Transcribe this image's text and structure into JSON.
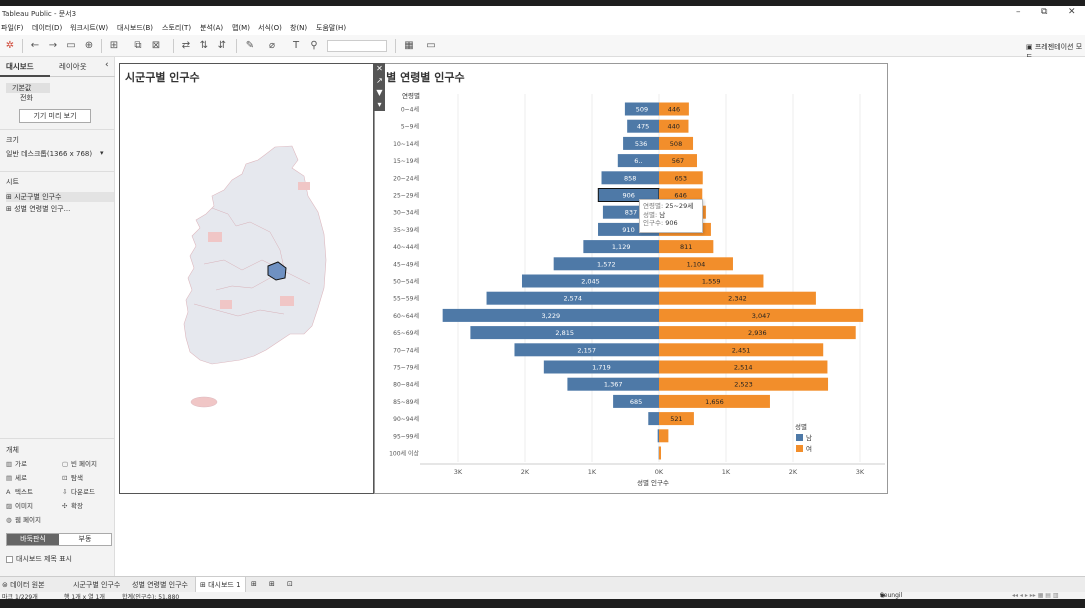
{
  "window": {
    "title": "Tableau Public - 문서3"
  },
  "menu": [
    "파일(F)",
    "데이터(D)",
    "워크시트(W)",
    "대시보드(B)",
    "스토리(T)",
    "분석(A)",
    "맵(M)",
    "서식(O)",
    "창(N)",
    "도움말(H)"
  ],
  "toolbar": {
    "presentation_mode": "프레젠테이션 모드"
  },
  "left_pane": {
    "tabs": [
      "대시보드",
      "레이아웃"
    ],
    "device_default": "기본값",
    "device_all": "전화",
    "device_preview_button": "기기 미리 보기",
    "size_header": "크기",
    "size_value": "일반 데스크톱(1366 x 768)",
    "sheets_header": "시트",
    "sheets": [
      "시군구별 인구수",
      "성별 연령별 인구..."
    ],
    "objects_header": "개체",
    "objects": [
      {
        "icon": "horizontal-icon",
        "label": "가로"
      },
      {
        "icon": "blank-icon",
        "label": "빈 페이지"
      },
      {
        "icon": "vertical-icon",
        "label": "세로"
      },
      {
        "icon": "navigation-icon",
        "label": "탐색"
      },
      {
        "icon": "text-icon",
        "label": "텍스트"
      },
      {
        "icon": "download-icon",
        "label": "다운로드"
      },
      {
        "icon": "image-icon",
        "label": "이미지"
      },
      {
        "icon": "extension-icon",
        "label": "확장"
      },
      {
        "icon": "web-page-icon",
        "label": "웹 페이지"
      }
    ],
    "layout_tiled": "바둑판식",
    "layout_floating": "부동",
    "show_title": "대시보드 제목 표시"
  },
  "map_panel": {
    "title": "시군구별 인구수"
  },
  "chart_panel": {
    "title": "성별 연령별 인구수"
  },
  "tooltip": {
    "rows": [
      {
        "key": "연령별:",
        "value": "25~29세"
      },
      {
        "key": "성별:",
        "value": "남"
      },
      {
        "key": "인구수:",
        "value": "906"
      }
    ]
  },
  "chart_data": {
    "type": "bar",
    "orientation": "horizontal",
    "layout": "population-pyramid",
    "title": "성별 연령별 인구수",
    "y_header": "연령별",
    "xlabel": "성별 인구수",
    "categories": [
      "0~4세",
      "5~9세",
      "10~14세",
      "15~19세",
      "20~24세",
      "25~29세",
      "30~34세",
      "35~39세",
      "40~44세",
      "45~49세",
      "50~54세",
      "55~59세",
      "60~64세",
      "65~69세",
      "70~74세",
      "75~79세",
      "80~84세",
      "85~89세",
      "90~94세",
      "95~99세",
      "100세 이상"
    ],
    "series": [
      {
        "name": "남",
        "color": "#4e79a7",
        "direction": "left",
        "values": [
          509,
          475,
          536,
          615,
          858,
          906,
          837,
          910,
          1129,
          1572,
          2045,
          2574,
          3229,
          2815,
          2157,
          1719,
          1367,
          685,
          160,
          20,
          5
        ],
        "labels": [
          "509",
          "475",
          "536",
          "6..",
          "858",
          "906",
          "837",
          "910",
          "1,129",
          "1,572",
          "2,045",
          "2,574",
          "3,229",
          "2,815",
          "2,157",
          "1,719",
          "1,367",
          "685",
          "",
          "",
          ""
        ]
      },
      {
        "name": "여",
        "color": "#f28e2b",
        "direction": "right",
        "values": [
          446,
          440,
          508,
          567,
          653,
          646,
          700,
          775,
          811,
          1104,
          1559,
          2342,
          3047,
          2936,
          2451,
          2514,
          2523,
          1656,
          521,
          140,
          30
        ],
        "labels": [
          "446",
          "440",
          "508",
          "567",
          "653",
          "646",
          "",
          "",
          "811",
          "1,104",
          "1,559",
          "2,342",
          "3,047",
          "2,936",
          "2,451",
          "2,514",
          "2,523",
          "1,656",
          "521",
          "",
          ""
        ]
      }
    ],
    "xticks": [
      "3K",
      "2K",
      "1K",
      "0K",
      "1K",
      "2K",
      "3K"
    ],
    "xlim": [
      -3200,
      3200
    ],
    "legend": {
      "title": "성별",
      "items": [
        "남",
        "여"
      ],
      "placement": "bottom-right"
    },
    "highlighted_category": "25~29세"
  },
  "sheet_tabs": [
    "데이터 원본",
    "시군구별 인구수",
    "성별 연령별 인구수",
    "대시보드 1"
  ],
  "status": {
    "marks": "마크 1/229개",
    "rows_cols": "행 1개 x 열 1개",
    "sum": "합계(인구수): 51,880",
    "user": "Seungil Kang"
  }
}
